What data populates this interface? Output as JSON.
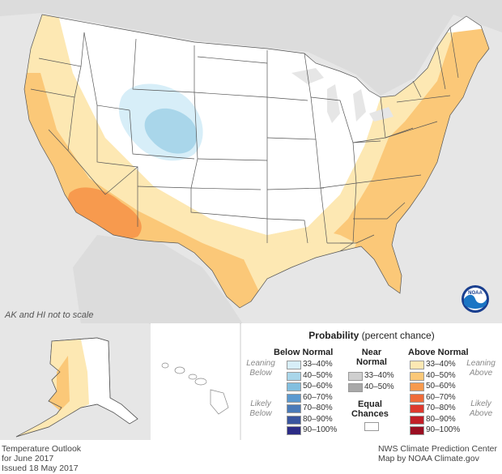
{
  "map_note": "AK and HI not to scale",
  "legend": {
    "title_bold": "Probability",
    "title_rest": "(percent chance)",
    "below": {
      "heading": "Below Normal",
      "leaning": [
        "Leaning",
        "Below"
      ],
      "likely": [
        "Likely",
        "Below"
      ],
      "items": [
        {
          "label": "33–40%",
          "color": "#d7eef8"
        },
        {
          "label": "40–50%",
          "color": "#a9d6ea"
        },
        {
          "label": "50–60%",
          "color": "#82bfdf"
        },
        {
          "label": "60–70%",
          "color": "#5b99cf"
        },
        {
          "label": "70–80%",
          "color": "#4a7ab8"
        },
        {
          "label": "80–90%",
          "color": "#3a559e"
        },
        {
          "label": "90–100%",
          "color": "#2c2c86"
        }
      ]
    },
    "near": {
      "heading": [
        "Near",
        "Normal"
      ],
      "items": [
        {
          "label": "33–40%",
          "color": "#cfcfcf"
        },
        {
          "label": "40–50%",
          "color": "#a8a8a8"
        }
      ],
      "equal_heading": [
        "Equal",
        "Chances"
      ],
      "equal_color": "#ffffff"
    },
    "above": {
      "heading": "Above Normal",
      "leaning": [
        "Leaning",
        "Above"
      ],
      "likely": [
        "Likely",
        "Above"
      ],
      "items": [
        {
          "label": "33–40%",
          "color": "#fde8b3"
        },
        {
          "label": "40–50%",
          "color": "#fbc878"
        },
        {
          "label": "50–60%",
          "color": "#f79a4e"
        },
        {
          "label": "60–70%",
          "color": "#ef6c3a"
        },
        {
          "label": "70–80%",
          "color": "#dd3a2e"
        },
        {
          "label": "80–90%",
          "color": "#c21f27"
        },
        {
          "label": "90–100%",
          "color": "#9b0f22"
        }
      ]
    }
  },
  "footer": {
    "left": [
      "Temperature Outlook",
      "for June 2017",
      "Issued 18 May 2017"
    ],
    "right": [
      "NWS Climate Prediction Center",
      "Map by NOAA Climate.gov"
    ]
  },
  "logo": "NOAA",
  "colors": {
    "land": "#ffffff",
    "background": "#e6e6e6",
    "water": "#e6e6e6",
    "border": "#555555"
  }
}
